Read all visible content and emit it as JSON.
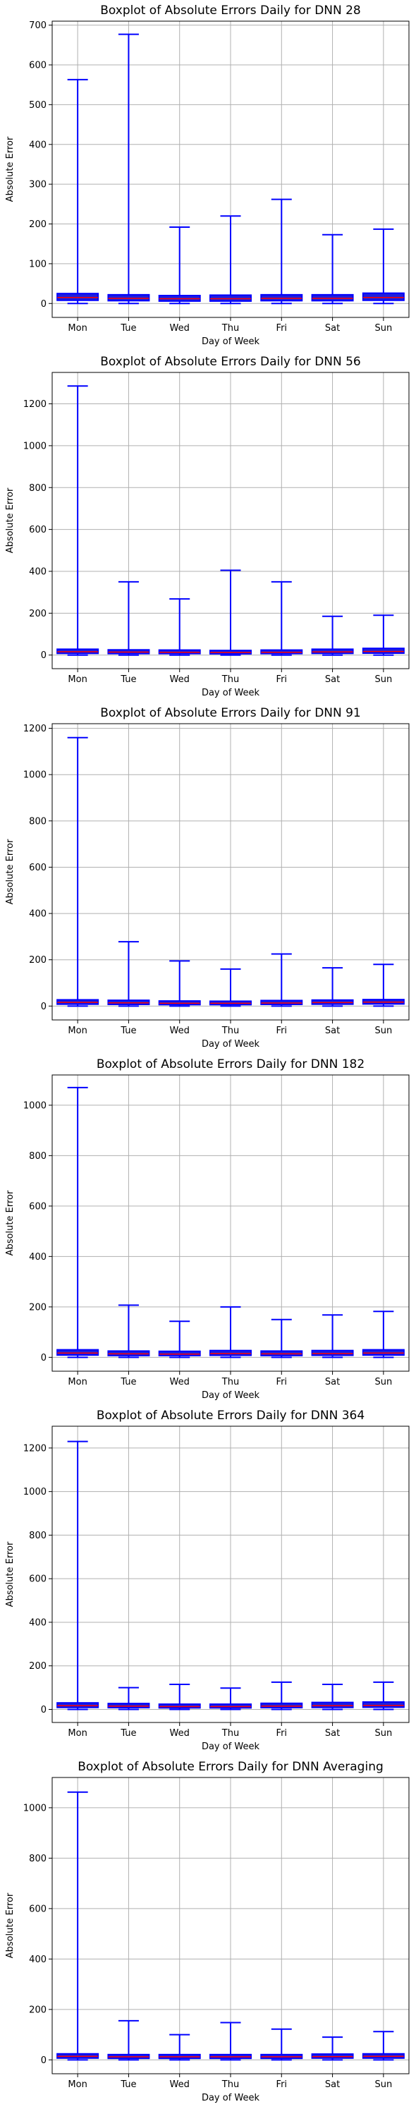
{
  "chart_data": [
    {
      "type": "boxplot",
      "title": "Boxplot of Absolute Errors Daily for DNN 28",
      "xlabel": "Day of Week",
      "ylabel": "Absolute Error",
      "categories": [
        "Mon",
        "Tue",
        "Wed",
        "Thu",
        "Fri",
        "Sat",
        "Sun"
      ],
      "ylim": [
        -35,
        710
      ],
      "yticks": [
        0,
        100,
        200,
        300,
        400,
        500,
        600,
        700
      ],
      "grid": true,
      "boxes": [
        {
          "whislo": 0,
          "q1": 8,
          "median": 15,
          "q3": 25,
          "whishi": 563
        },
        {
          "whislo": 0,
          "q1": 7,
          "median": 13,
          "q3": 22,
          "whishi": 677
        },
        {
          "whislo": 0,
          "q1": 6,
          "median": 12,
          "q3": 20,
          "whishi": 192
        },
        {
          "whislo": 0,
          "q1": 6,
          "median": 12,
          "q3": 21,
          "whishi": 220
        },
        {
          "whislo": 0,
          "q1": 7,
          "median": 13,
          "q3": 22,
          "whishi": 262
        },
        {
          "whislo": 0,
          "q1": 7,
          "median": 13,
          "q3": 22,
          "whishi": 173
        },
        {
          "whislo": 0,
          "q1": 8,
          "median": 15,
          "q3": 26,
          "whishi": 187
        }
      ]
    },
    {
      "type": "boxplot",
      "title": "Boxplot of Absolute Errors Daily for DNN 56",
      "xlabel": "Day of Week",
      "ylabel": "Absolute Error",
      "categories": [
        "Mon",
        "Tue",
        "Wed",
        "Thu",
        "Fri",
        "Sat",
        "Sun"
      ],
      "ylim": [
        -65,
        1350
      ],
      "yticks": [
        0,
        200,
        400,
        600,
        800,
        1000,
        1200
      ],
      "grid": true,
      "boxes": [
        {
          "whislo": 0,
          "q1": 8,
          "median": 16,
          "q3": 28,
          "whishi": 1285
        },
        {
          "whislo": 0,
          "q1": 7,
          "median": 14,
          "q3": 25,
          "whishi": 350
        },
        {
          "whislo": 0,
          "q1": 7,
          "median": 13,
          "q3": 24,
          "whishi": 268
        },
        {
          "whislo": 0,
          "q1": 6,
          "median": 12,
          "q3": 22,
          "whishi": 405
        },
        {
          "whislo": 0,
          "q1": 7,
          "median": 13,
          "q3": 24,
          "whishi": 350
        },
        {
          "whislo": 0,
          "q1": 8,
          "median": 15,
          "q3": 28,
          "whishi": 185
        },
        {
          "whislo": 0,
          "q1": 9,
          "median": 17,
          "q3": 32,
          "whishi": 190
        }
      ]
    },
    {
      "type": "boxplot",
      "title": "Boxplot of Absolute Errors Daily for DNN 91",
      "xlabel": "Day of Week",
      "ylabel": "Absolute Error",
      "categories": [
        "Mon",
        "Tue",
        "Wed",
        "Thu",
        "Fri",
        "Sat",
        "Sun"
      ],
      "ylim": [
        -60,
        1220
      ],
      "yticks": [
        0,
        200,
        400,
        600,
        800,
        1000,
        1200
      ],
      "grid": true,
      "boxes": [
        {
          "whislo": 0,
          "q1": 8,
          "median": 16,
          "q3": 27,
          "whishi": 1160
        },
        {
          "whislo": 0,
          "q1": 7,
          "median": 14,
          "q3": 25,
          "whishi": 278
        },
        {
          "whislo": 0,
          "q1": 6,
          "median": 12,
          "q3": 22,
          "whishi": 195
        },
        {
          "whislo": 0,
          "q1": 6,
          "median": 12,
          "q3": 21,
          "whishi": 160
        },
        {
          "whislo": 0,
          "q1": 7,
          "median": 13,
          "q3": 24,
          "whishi": 225
        },
        {
          "whislo": 0,
          "q1": 8,
          "median": 15,
          "q3": 26,
          "whishi": 165
        },
        {
          "whislo": 0,
          "q1": 9,
          "median": 17,
          "q3": 28,
          "whishi": 180
        }
      ]
    },
    {
      "type": "boxplot",
      "title": "Boxplot of Absolute Errors Daily for DNN 182",
      "xlabel": "Day of Week",
      "ylabel": "Absolute Error",
      "categories": [
        "Mon",
        "Tue",
        "Wed",
        "Thu",
        "Fri",
        "Sat",
        "Sun"
      ],
      "ylim": [
        -55,
        1120
      ],
      "yticks": [
        0,
        200,
        400,
        600,
        800,
        1000
      ],
      "grid": true,
      "boxes": [
        {
          "whislo": 0,
          "q1": 9,
          "median": 17,
          "q3": 30,
          "whishi": 1070
        },
        {
          "whislo": 0,
          "q1": 7,
          "median": 14,
          "q3": 25,
          "whishi": 207
        },
        {
          "whislo": 0,
          "q1": 7,
          "median": 13,
          "q3": 24,
          "whishi": 143
        },
        {
          "whislo": 0,
          "q1": 8,
          "median": 15,
          "q3": 27,
          "whishi": 200
        },
        {
          "whislo": 0,
          "q1": 7,
          "median": 14,
          "q3": 25,
          "whishi": 150
        },
        {
          "whislo": 0,
          "q1": 8,
          "median": 15,
          "q3": 27,
          "whishi": 168
        },
        {
          "whislo": 0,
          "q1": 9,
          "median": 17,
          "q3": 30,
          "whishi": 182
        }
      ]
    },
    {
      "type": "boxplot",
      "title": "Boxplot of Absolute Errors Daily for DNN 364",
      "xlabel": "Day of Week",
      "ylabel": "Absolute Error",
      "categories": [
        "Mon",
        "Tue",
        "Wed",
        "Thu",
        "Fri",
        "Sat",
        "Sun"
      ],
      "ylim": [
        -60,
        1300
      ],
      "yticks": [
        0,
        200,
        400,
        600,
        800,
        1000,
        1200
      ],
      "grid": true,
      "boxes": [
        {
          "whislo": 0,
          "q1": 9,
          "median": 17,
          "q3": 30,
          "whishi": 1230
        },
        {
          "whislo": 0,
          "q1": 8,
          "median": 15,
          "q3": 27,
          "whishi": 100
        },
        {
          "whislo": 0,
          "q1": 7,
          "median": 13,
          "q3": 24,
          "whishi": 115
        },
        {
          "whislo": 0,
          "q1": 7,
          "median": 13,
          "q3": 24,
          "whishi": 98
        },
        {
          "whislo": 0,
          "q1": 8,
          "median": 15,
          "q3": 28,
          "whishi": 125
        },
        {
          "whislo": 0,
          "q1": 9,
          "median": 17,
          "q3": 32,
          "whishi": 115
        },
        {
          "whislo": 0,
          "q1": 10,
          "median": 18,
          "q3": 34,
          "whishi": 125
        }
      ]
    },
    {
      "type": "boxplot",
      "title": "Boxplot of Absolute Errors Daily for DNN Averaging",
      "xlabel": "Day of Week",
      "ylabel": "Absolute Error",
      "categories": [
        "Mon",
        "Tue",
        "Wed",
        "Thu",
        "Fri",
        "Sat",
        "Sun"
      ],
      "ylim": [
        -55,
        1120
      ],
      "yticks": [
        0,
        200,
        400,
        600,
        800,
        1000
      ],
      "grid": true,
      "boxes": [
        {
          "whislo": 0,
          "q1": 7,
          "median": 14,
          "q3": 24,
          "whishi": 1062
        },
        {
          "whislo": 0,
          "q1": 6,
          "median": 12,
          "q3": 21,
          "whishi": 155
        },
        {
          "whislo": 0,
          "q1": 6,
          "median": 12,
          "q3": 21,
          "whishi": 100
        },
        {
          "whislo": 0,
          "q1": 6,
          "median": 12,
          "q3": 21,
          "whishi": 148
        },
        {
          "whislo": 0,
          "q1": 6,
          "median": 12,
          "q3": 21,
          "whishi": 122
        },
        {
          "whislo": 0,
          "q1": 7,
          "median": 13,
          "q3": 23,
          "whishi": 90
        },
        {
          "whislo": 0,
          "q1": 7,
          "median": 14,
          "q3": 24,
          "whishi": 112
        }
      ]
    }
  ],
  "colors": {
    "box_fill": "#1f1fdc",
    "box_edge": "#0000ff",
    "whisker": "#0000ff",
    "median": "#ff0000",
    "grid": "#b0b0b0",
    "axis": "#000000"
  }
}
